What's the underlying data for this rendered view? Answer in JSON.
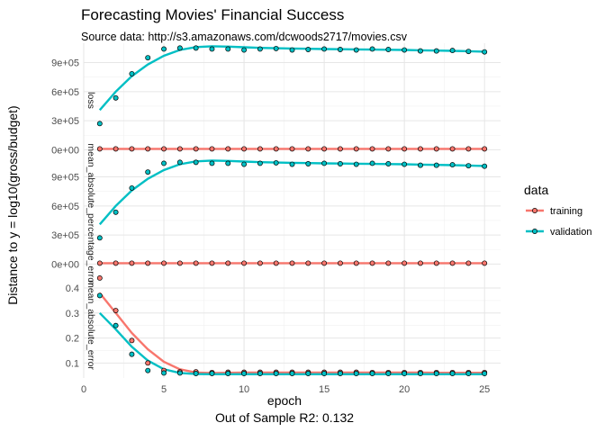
{
  "title": "Forecasting Movies' Financial Success",
  "subtitle": "Source data: http://s3.amazonaws.com/dcwoods2717/movies.csv",
  "caption": "Out of Sample R2: 0.132",
  "chart_data": {
    "type": "scatter",
    "xlabel": "epoch",
    "ylabel": "Distance to y = log10(gross/budget)",
    "xlim": [
      0,
      26
    ],
    "x_ticks": [
      "0",
      "5",
      "10",
      "15",
      "20",
      "25"
    ],
    "x": [
      1,
      2,
      3,
      4,
      5,
      6,
      7,
      8,
      9,
      10,
      11,
      12,
      13,
      14,
      15,
      16,
      17,
      18,
      19,
      20,
      21,
      22,
      23,
      24,
      25
    ],
    "legend": {
      "title": "data",
      "position": "right",
      "entries": [
        {
          "name": "training",
          "color": "#F8766D"
        },
        {
          "name": "validation",
          "color": "#00BFC4"
        }
      ]
    },
    "grid": true,
    "smooth_lines": true,
    "panels": [
      {
        "strip": "loss",
        "ylim": [
          -80000,
          1100000
        ],
        "y_ticks": [
          {
            "value": 0,
            "label": "0e+00"
          },
          {
            "value": 300000,
            "label": "3e+05"
          },
          {
            "value": 600000,
            "label": "6e+05"
          },
          {
            "value": 900000,
            "label": "9e+05"
          }
        ],
        "series": [
          {
            "name": "training",
            "color": "#F8766D",
            "points": [
              9000,
              9000,
              9000,
              9000,
              9000,
              9000,
              9000,
              9000,
              9000,
              9000,
              9000,
              9000,
              9000,
              9000,
              9000,
              9000,
              9000,
              9000,
              9000,
              9000,
              9000,
              9000,
              9000,
              9000,
              9000
            ],
            "smooth": [
              9000,
              9000,
              9000,
              9000,
              9000,
              9000,
              9000,
              9000,
              9000,
              9000,
              9000,
              9000,
              9000,
              9000,
              9000,
              9000,
              9000,
              9000,
              9000,
              9000,
              9000,
              9000,
              9000,
              9000,
              9000
            ]
          },
          {
            "name": "validation",
            "color": "#00BFC4",
            "points": [
              270000,
              535000,
              785000,
              950000,
              1040000,
              1050000,
              1050000,
              1040000,
              1040000,
              1030000,
              1040000,
              1045000,
              1030000,
              1035000,
              1040000,
              1035000,
              1030000,
              1040000,
              1035000,
              1030000,
              1020000,
              1020000,
              1025000,
              1015000,
              1010000
            ],
            "smooth": [
              410000,
              600000,
              760000,
              880000,
              970000,
              1030000,
              1060000,
              1068000,
              1065000,
              1058000,
              1052000,
              1048000,
              1045000,
              1042000,
              1040000,
              1038000,
              1036000,
              1034000,
              1032000,
              1030000,
              1027000,
              1024000,
              1021000,
              1017000,
              1013000
            ]
          }
        ]
      },
      {
        "strip": "mean_absolute_percentage_error",
        "ylim": [
          -80000,
          1100000
        ],
        "y_ticks": [
          {
            "value": 0,
            "label": "0e+00"
          },
          {
            "value": 300000,
            "label": "3e+05"
          },
          {
            "value": 600000,
            "label": "6e+05"
          },
          {
            "value": 900000,
            "label": "9e+05"
          }
        ],
        "series": [
          {
            "name": "training",
            "color": "#F8766D",
            "points": [
              9000,
              9000,
              9000,
              9000,
              9000,
              9000,
              9000,
              9000,
              9000,
              9000,
              9000,
              9000,
              9000,
              9000,
              9000,
              9000,
              9000,
              9000,
              9000,
              9000,
              9000,
              9000,
              9000,
              9000,
              9000
            ],
            "smooth": [
              9000,
              9000,
              9000,
              9000,
              9000,
              9000,
              9000,
              9000,
              9000,
              9000,
              9000,
              9000,
              9000,
              9000,
              9000,
              9000,
              9000,
              9000,
              9000,
              9000,
              9000,
              9000,
              9000,
              9000,
              9000
            ]
          },
          {
            "name": "validation",
            "color": "#00BFC4",
            "points": [
              270000,
              535000,
              785000,
              950000,
              1040000,
              1050000,
              1050000,
              1040000,
              1040000,
              1030000,
              1040000,
              1045000,
              1030000,
              1035000,
              1040000,
              1035000,
              1030000,
              1040000,
              1035000,
              1030000,
              1020000,
              1020000,
              1025000,
              1015000,
              1010000
            ],
            "smooth": [
              410000,
              600000,
              760000,
              880000,
              970000,
              1030000,
              1060000,
              1068000,
              1065000,
              1058000,
              1052000,
              1048000,
              1045000,
              1042000,
              1040000,
              1038000,
              1036000,
              1034000,
              1032000,
              1030000,
              1027000,
              1024000,
              1021000,
              1017000,
              1013000
            ]
          }
        ]
      },
      {
        "strip": "mean_absolute_error",
        "ylim": [
          0.04,
          0.465
        ],
        "y_ticks": [
          {
            "value": 0.1,
            "label": "0.1"
          },
          {
            "value": 0.2,
            "label": "0.2"
          },
          {
            "value": 0.3,
            "label": "0.3"
          },
          {
            "value": 0.4,
            "label": "0.4"
          }
        ],
        "series": [
          {
            "name": "training",
            "color": "#F8766D",
            "points": [
              0.44,
              0.31,
              0.19,
              0.1,
              0.07,
              0.065,
              0.065,
              0.062,
              0.063,
              0.063,
              0.063,
              0.063,
              0.063,
              0.063,
              0.063,
              0.063,
              0.063,
              0.062,
              0.062,
              0.062,
              0.062,
              0.062,
              0.062,
              0.062,
              0.062
            ],
            "smooth": [
              0.38,
              0.3,
              0.22,
              0.155,
              0.105,
              0.075,
              0.062,
              0.06,
              0.061,
              0.062,
              0.062,
              0.062,
              0.062,
              0.062,
              0.062,
              0.062,
              0.062,
              0.062,
              0.062,
              0.062,
              0.062,
              0.061,
              0.061,
              0.061,
              0.061
            ]
          },
          {
            "name": "validation",
            "color": "#00BFC4",
            "points": [
              0.37,
              0.25,
              0.135,
              0.07,
              0.06,
              0.06,
              0.058,
              0.058,
              0.058,
              0.058,
              0.058,
              0.058,
              0.058,
              0.058,
              0.058,
              0.058,
              0.058,
              0.058,
              0.058,
              0.058,
              0.058,
              0.058,
              0.058,
              0.058,
              0.058
            ],
            "smooth": [
              0.3,
              0.235,
              0.165,
              0.11,
              0.075,
              0.06,
              0.056,
              0.055,
              0.055,
              0.055,
              0.055,
              0.055,
              0.055,
              0.055,
              0.055,
              0.055,
              0.055,
              0.055,
              0.055,
              0.055,
              0.055,
              0.055,
              0.055,
              0.055,
              0.055
            ]
          }
        ]
      }
    ]
  }
}
